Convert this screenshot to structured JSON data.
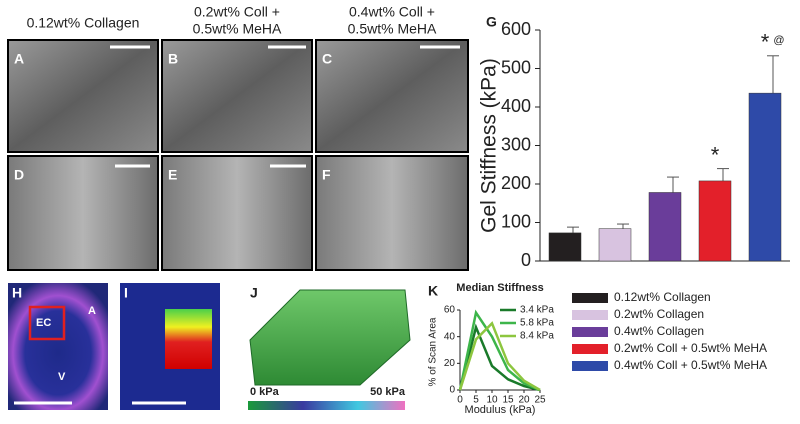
{
  "figure": {
    "column_titles": [
      [
        "0.12wt% Collagen"
      ],
      [
        "0.2wt% Coll +",
        "0.5wt% MeHA"
      ],
      [
        "0.4wt% Coll +",
        "0.5wt% MeHA"
      ]
    ],
    "panel_labels": [
      "A",
      "B",
      "C",
      "D",
      "E",
      "F",
      "H",
      "I",
      "J"
    ],
    "image_annotations": [
      "EC",
      "A",
      "V"
    ],
    "colorbar_labels": [
      "0 kPa",
      "50 kPa"
    ]
  },
  "chart_data": [
    {
      "type": "bar",
      "panel_label": "G",
      "y_label": "Gel Stiffness (kPa)",
      "categories": [
        "0.12wt% Collagen",
        "0.2wt% Collagen",
        "0.4wt% Collagen",
        "0.2wt% Coll + 0.5wt% MeHA",
        "0.4wt% Coll + 0.5wt% MeHA"
      ],
      "values": [
        73,
        84,
        178,
        208,
        436
      ],
      "errors": [
        15,
        12,
        40,
        32,
        97
      ],
      "colors": [
        "#231f20",
        "#d8c3e0",
        "#6a3d9a",
        "#e3202a",
        "#2e4aa8"
      ],
      "ylim": [
        0,
        600
      ],
      "yticks": [
        0,
        100,
        200,
        300,
        400,
        500,
        600
      ],
      "annotations": [
        {
          "text": "*",
          "category": "0.2wt% Coll + 0.5wt% MeHA"
        },
        {
          "text": "*",
          "category": "0.4wt% Coll + 0.5wt% MeHA"
        },
        {
          "text": "@",
          "category": "0.4wt% Coll + 0.5wt% MeHA"
        }
      ]
    },
    {
      "type": "line",
      "panel_label": "K",
      "title": "Median Stiffness",
      "x_label": "Modulus (kPa)",
      "y_label": "% of Scan Area",
      "x": [
        0,
        5,
        10,
        15,
        20,
        25
      ],
      "series": [
        {
          "name": "3.4 kPa",
          "color": "#1a7a2a",
          "values": [
            0,
            47,
            18,
            8,
            3,
            0
          ]
        },
        {
          "name": "5.8 kPa",
          "color": "#3db54a",
          "values": [
            0,
            58,
            40,
            15,
            5,
            0
          ]
        },
        {
          "name": "8.4 kPa",
          "color": "#8dc63f",
          "values": [
            0,
            38,
            50,
            20,
            7,
            0
          ]
        }
      ],
      "xlim": [
        0,
        25
      ],
      "xticks": [
        0,
        5,
        10,
        15,
        20,
        25
      ],
      "ylim": [
        0,
        60
      ],
      "yticks": [
        0,
        20,
        40,
        60
      ]
    }
  ]
}
